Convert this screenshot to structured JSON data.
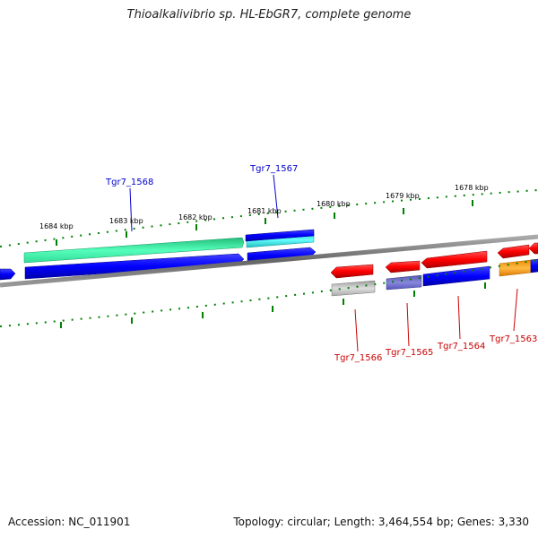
{
  "title": "Thioalkalivibrio sp. HL-EbGR7, complete genome",
  "footer": {
    "accession": "Accession: NC_011901",
    "summary": "Topology: circular; Length: 3,464,554 bp; Genes: 3,330"
  },
  "scale_labels": [
    "1684 kbp",
    "1683 kbp",
    "1682 kbp",
    "1681 kbp",
    "1680 kbp",
    "1679 kbp",
    "1678 kbp"
  ],
  "gene_labels": {
    "top": [
      {
        "name": "Tgr7_1568",
        "color": "#0000cc"
      },
      {
        "name": "Tgr7_1567",
        "color": "#0000cc"
      }
    ],
    "bottom": [
      {
        "name": "Tgr7_1566",
        "color": "#cc0000"
      },
      {
        "name": "Tgr7_1565",
        "color": "#cc0000"
      },
      {
        "name": "Tgr7_1564",
        "color": "#cc0000"
      },
      {
        "name": "Tgr7_1563",
        "color": "#cc0000"
      }
    ]
  },
  "colors": {
    "backbone": "#808080",
    "tick": "#008000",
    "forward_cds": "#0000ff",
    "reverse_cds": "#ff0000",
    "teal_feature": "#33e6a6",
    "cyan_feature": "#33dddd",
    "grey_feature": "#b0b0b0",
    "purple_feature": "#6666cc",
    "orange_feature": "#ff9900"
  }
}
